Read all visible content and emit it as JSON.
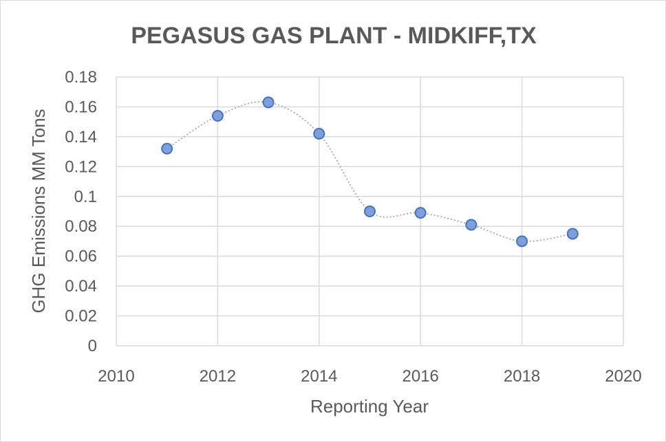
{
  "chart_data": {
    "type": "scatter",
    "title": "PEGASUS GAS PLANT - MIDKIFF,TX",
    "xlabel": "Reporting Year",
    "ylabel": "GHG Emissions MM Tons",
    "xlim": [
      2010,
      2020
    ],
    "ylim": [
      0,
      0.18
    ],
    "x_ticks": [
      "2010",
      "2012",
      "2014",
      "2016",
      "2018",
      "2020"
    ],
    "y_ticks": [
      "0",
      "0.02",
      "0.04",
      "0.06",
      "0.08",
      "0.1",
      "0.12",
      "0.14",
      "0.16",
      "0.18"
    ],
    "x": [
      2011,
      2012,
      2013,
      2014,
      2015,
      2016,
      2017,
      2018,
      2019
    ],
    "y": [
      0.132,
      0.154,
      0.163,
      0.142,
      0.09,
      0.089,
      0.081,
      0.07,
      0.075
    ],
    "smooth_line": true,
    "line_style": "dotted",
    "grid": true,
    "marker_color": "#7f9fd9",
    "marker_edge_color": "#4472c4",
    "line_color": "#a6a6a6",
    "grid_color": "#d9d9d9"
  }
}
